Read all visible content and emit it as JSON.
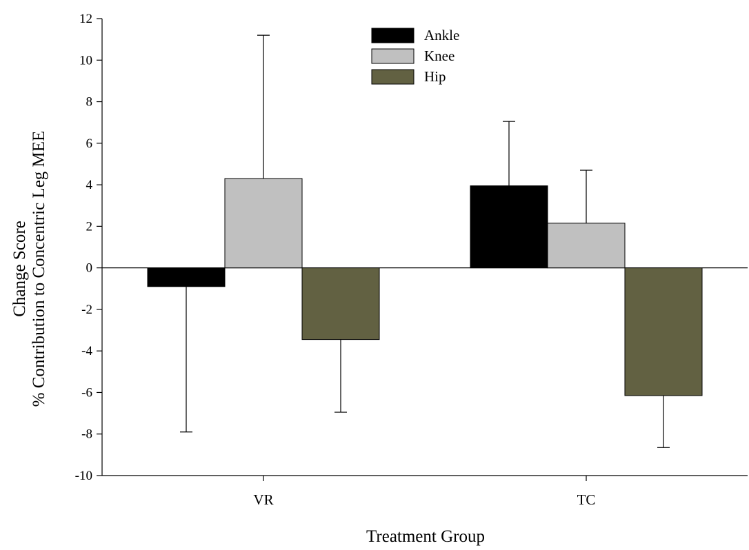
{
  "chart_data": {
    "type": "bar",
    "title": "",
    "xlabel": "Treatment Group",
    "ylabel_lines": [
      "Change Score",
      "% Contribution to Concentric Leg MEE"
    ],
    "categories": [
      "VR",
      "TC"
    ],
    "ylim": [
      -10,
      12
    ],
    "yticks": [
      "-10",
      "-8",
      "-6",
      "-4",
      "-2",
      "0",
      "2",
      "4",
      "6",
      "8",
      "10",
      "12"
    ],
    "grid": false,
    "legend_position": "top-center",
    "series": [
      {
        "name": "Ankle",
        "color": "#000000",
        "values": [
          -0.9,
          3.95
        ],
        "error": [
          7.0,
          3.1
        ]
      },
      {
        "name": "Knee",
        "color": "#c0c0c0",
        "values": [
          4.3,
          2.15
        ],
        "error": [
          6.9,
          2.55
        ]
      },
      {
        "name": "Hip",
        "color": "#626142",
        "values": [
          -3.45,
          -6.15
        ],
        "error": [
          3.5,
          2.5
        ]
      }
    ]
  }
}
